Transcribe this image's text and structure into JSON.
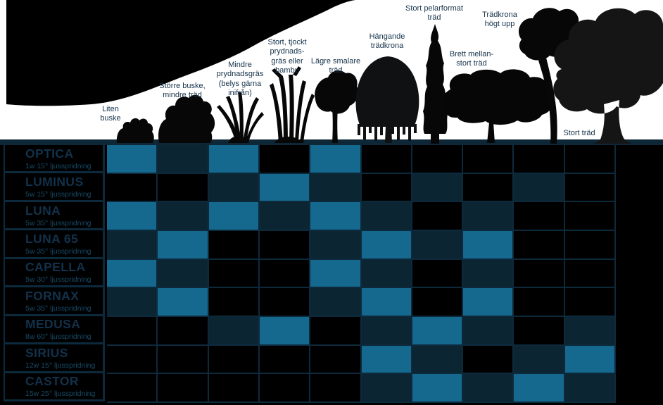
{
  "chart_data": {
    "type": "heatmap",
    "description_visible_text_language": "sv",
    "columns": [
      {
        "name": "Liten buske",
        "display": "Liten\nbuske"
      },
      {
        "name": "Större buske, mindre träd",
        "display": "Större buske,\nmindre träd"
      },
      {
        "name": "Mindre prydnadsgräs (belys gärna inifrån)",
        "display": "Mindre\nprydnadsgräs\n(belys gärna\ninifrån)"
      },
      {
        "name": "Stort, tjockt prydnadsgräs eller bambu",
        "display": "Stort, tjockt\nprydnads-\ngräs eller\nbambu"
      },
      {
        "name": "Lägre smalare träd",
        "display": "Lägre smalare\nträd"
      },
      {
        "name": "Hängande trädkrona",
        "display": "Hängande\nträdkrona"
      },
      {
        "name": "Stort pelarformat träd",
        "display": "Stort pelarformat\nträd"
      },
      {
        "name": "Brett mellan-stort träd",
        "display": "Brett mellan-\nstort träd"
      },
      {
        "name": "Trädkrona högt upp",
        "display": "Trädkrona\nhögt upp"
      },
      {
        "name": "Stort träd",
        "display": "Stort träd"
      }
    ],
    "rows": [
      {
        "name": "OPTICA",
        "spec": "1w 15° ljusspridning",
        "values": [
          2,
          1,
          2,
          0,
          2,
          0,
          0,
          0,
          0,
          0
        ]
      },
      {
        "name": "LUMINUS",
        "spec": "5w 15° ljusspridning",
        "values": [
          0,
          0,
          1,
          2,
          1,
          0,
          1,
          0,
          1,
          0
        ]
      },
      {
        "name": "LUNA",
        "spec": "5w 35° ljusspridning",
        "values": [
          2,
          1,
          2,
          1,
          2,
          1,
          0,
          1,
          0,
          0
        ]
      },
      {
        "name": "LUNA 65",
        "spec": "5w 35° ljusspridning",
        "values": [
          1,
          2,
          0,
          0,
          1,
          2,
          1,
          2,
          0,
          0
        ]
      },
      {
        "name": "CAPELLA",
        "spec": "5w 30° ljusspridning",
        "values": [
          2,
          1,
          0,
          0,
          2,
          1,
          0,
          1,
          0,
          0
        ]
      },
      {
        "name": "FORNAX",
        "spec": "5w 35° ljusspridning",
        "values": [
          1,
          2,
          0,
          0,
          1,
          2,
          0,
          2,
          0,
          0
        ]
      },
      {
        "name": "MEDUSA",
        "spec": "8w 60° ljusspridning",
        "values": [
          0,
          0,
          1,
          2,
          0,
          1,
          2,
          1,
          0,
          1
        ]
      },
      {
        "name": "SIRIUS",
        "spec": "12w 15° ljusspridning",
        "values": [
          0,
          0,
          0,
          0,
          0,
          2,
          1,
          0,
          1,
          2
        ]
      },
      {
        "name": "CASTOR",
        "spec": "15w 25° ljusspridning",
        "values": [
          0,
          0,
          0,
          0,
          0,
          1,
          2,
          1,
          2,
          1
        ]
      }
    ],
    "value_colors": {
      "0": "#000000",
      "1": "#0c2533",
      "2": "#15698f"
    },
    "colors": {
      "grid_line": "#0d2a3c",
      "ground_bar": "#0d2737",
      "row_title": "#12314a",
      "row_spec": "#174a66",
      "header_text": "#16334b",
      "header_background": "#ffffff",
      "matrix_background": "#000000"
    },
    "silhouette_icons": [
      "background-canopy-icon",
      "small-bush-icon",
      "large-bush-icon",
      "ornamental-grass-icon",
      "bamboo-clump-icon",
      "slender-tree-icon",
      "weeping-tree-icon",
      "columnar-tree-icon",
      "wide-tree-icon",
      "high-crown-tree-icon",
      "large-tree-icon"
    ]
  }
}
